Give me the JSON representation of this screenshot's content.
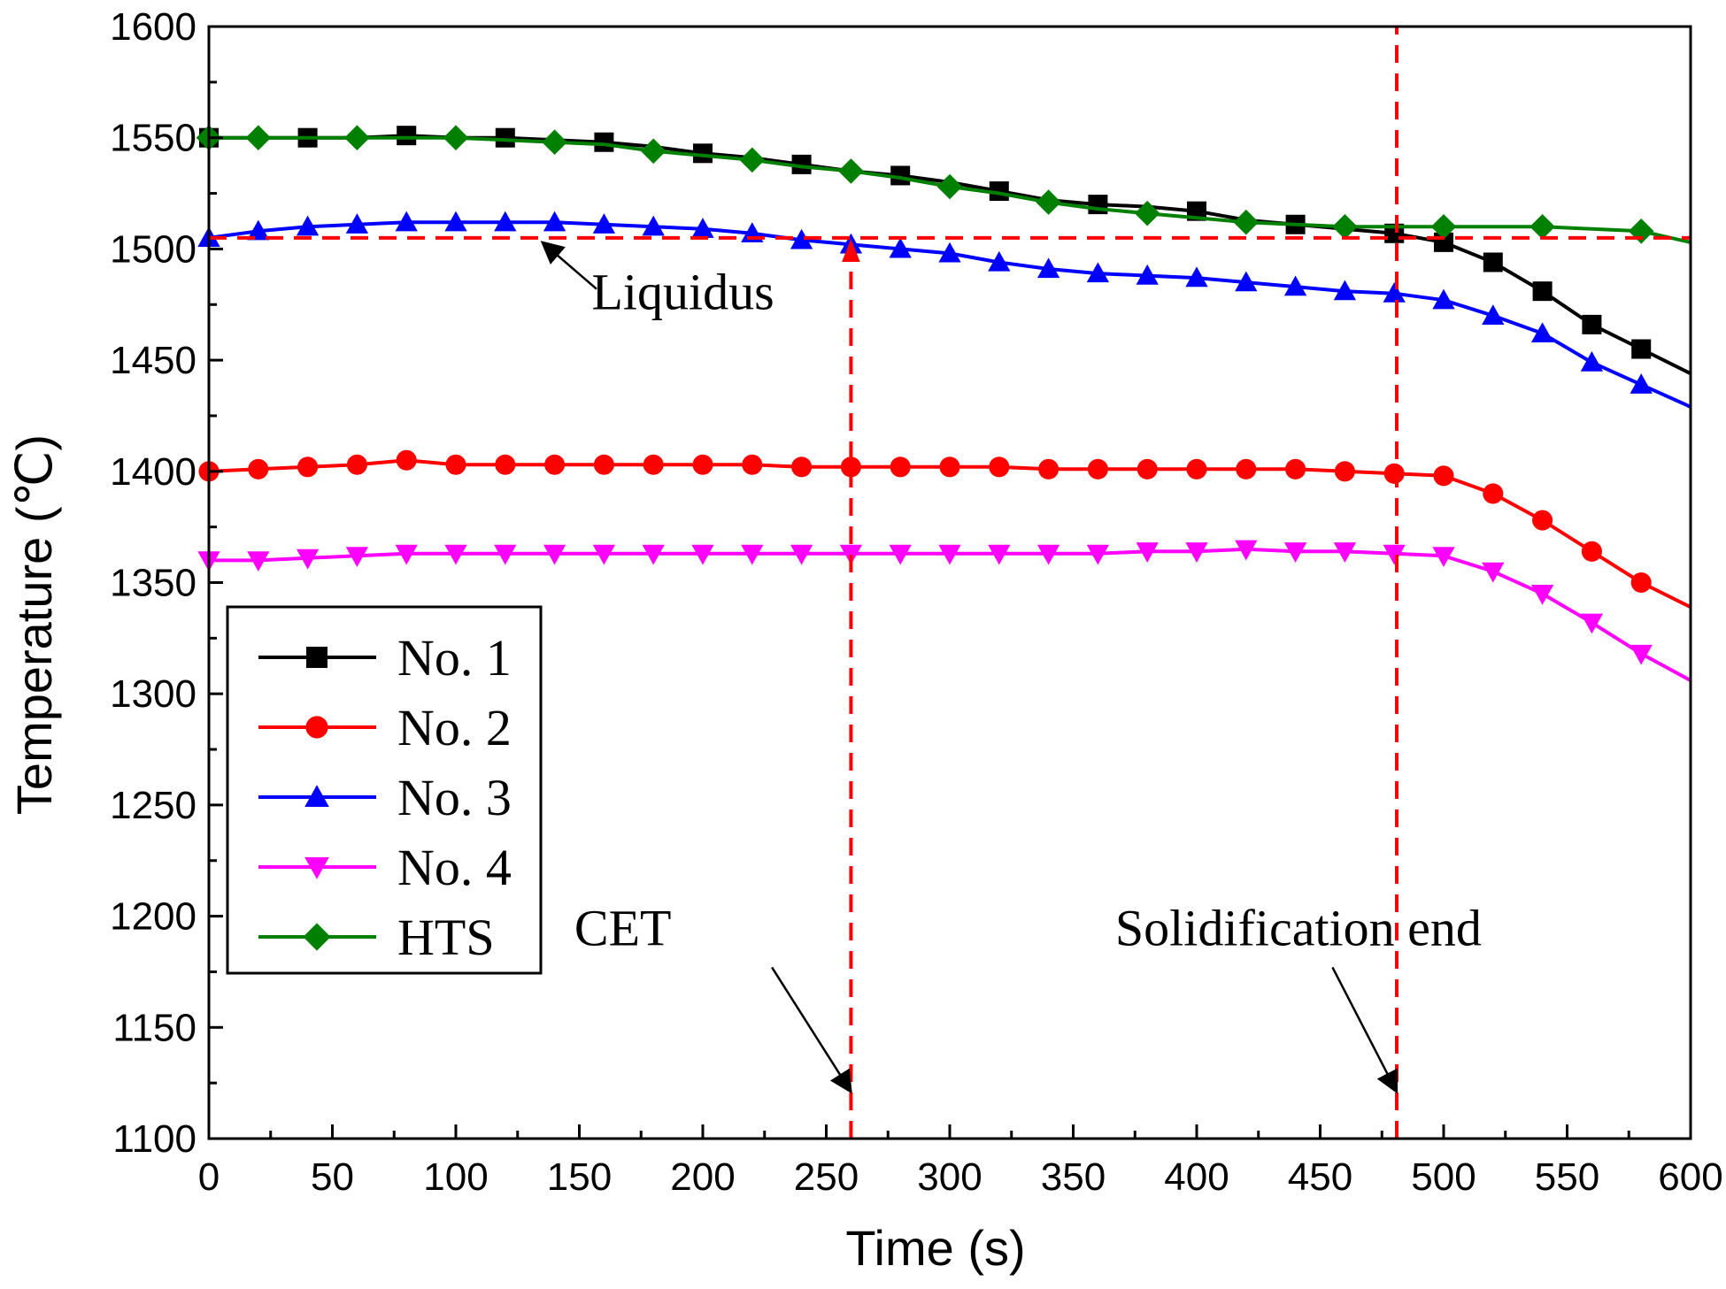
{
  "chart_data": {
    "type": "line",
    "xlabel": "Time (s)",
    "ylabel": "Temperature (℃)",
    "xlim": [
      0,
      600
    ],
    "ylim": [
      1100,
      1600
    ],
    "xticks": [
      0,
      50,
      100,
      150,
      200,
      250,
      300,
      350,
      400,
      450,
      500,
      550,
      600
    ],
    "yticks": [
      1100,
      1150,
      1200,
      1250,
      1300,
      1350,
      1400,
      1450,
      1500,
      1550,
      1600
    ],
    "grid": false,
    "legend_position": "bottom-left",
    "series": [
      {
        "name": "No. 1",
        "color": "#000000",
        "marker": "square",
        "points": [
          [
            0,
            1550
          ],
          [
            20,
            1550
          ],
          [
            40,
            1550
          ],
          [
            60,
            1550
          ],
          [
            80,
            1551
          ],
          [
            100,
            1550
          ],
          [
            120,
            1550
          ],
          [
            140,
            1549
          ],
          [
            160,
            1548
          ],
          [
            180,
            1546
          ],
          [
            200,
            1543
          ],
          [
            220,
            1541
          ],
          [
            240,
            1538
          ],
          [
            260,
            1535
          ],
          [
            280,
            1533
          ],
          [
            300,
            1530
          ],
          [
            320,
            1526
          ],
          [
            340,
            1522
          ],
          [
            360,
            1520
          ],
          [
            380,
            1519
          ],
          [
            400,
            1517
          ],
          [
            420,
            1513
          ],
          [
            440,
            1511
          ],
          [
            460,
            1509
          ],
          [
            480,
            1507
          ],
          [
            500,
            1503
          ],
          [
            520,
            1494
          ],
          [
            540,
            1481
          ],
          [
            560,
            1466
          ],
          [
            580,
            1455
          ],
          [
            600,
            1444
          ]
        ],
        "marker_x": [
          0,
          40,
          80,
          120,
          160,
          200,
          240,
          280,
          320,
          360,
          400,
          440,
          480,
          500,
          520,
          540,
          560,
          580
        ]
      },
      {
        "name": "No. 2",
        "color": "#ff0000",
        "marker": "circle",
        "points": [
          [
            0,
            1400
          ],
          [
            20,
            1401
          ],
          [
            40,
            1402
          ],
          [
            60,
            1403
          ],
          [
            80,
            1405
          ],
          [
            100,
            1403
          ],
          [
            120,
            1403
          ],
          [
            140,
            1403
          ],
          [
            160,
            1403
          ],
          [
            180,
            1403
          ],
          [
            200,
            1403
          ],
          [
            220,
            1403
          ],
          [
            240,
            1402
          ],
          [
            260,
            1402
          ],
          [
            280,
            1402
          ],
          [
            300,
            1402
          ],
          [
            320,
            1402
          ],
          [
            340,
            1401
          ],
          [
            360,
            1401
          ],
          [
            380,
            1401
          ],
          [
            400,
            1401
          ],
          [
            420,
            1401
          ],
          [
            440,
            1401
          ],
          [
            460,
            1400
          ],
          [
            480,
            1399
          ],
          [
            500,
            1398
          ],
          [
            520,
            1390
          ],
          [
            540,
            1378
          ],
          [
            560,
            1364
          ],
          [
            580,
            1350
          ],
          [
            600,
            1339
          ]
        ],
        "marker_x": [
          0,
          20,
          40,
          60,
          80,
          100,
          120,
          140,
          160,
          180,
          200,
          220,
          240,
          260,
          280,
          300,
          320,
          340,
          360,
          380,
          400,
          420,
          440,
          460,
          480,
          500,
          520,
          540,
          560,
          580
        ]
      },
      {
        "name": "No. 3",
        "color": "#0000ff",
        "marker": "triangle-up",
        "points": [
          [
            0,
            1505
          ],
          [
            20,
            1508
          ],
          [
            40,
            1510
          ],
          [
            60,
            1511
          ],
          [
            80,
            1512
          ],
          [
            100,
            1512
          ],
          [
            120,
            1512
          ],
          [
            140,
            1512
          ],
          [
            160,
            1511
          ],
          [
            180,
            1510
          ],
          [
            200,
            1509
          ],
          [
            220,
            1507
          ],
          [
            240,
            1504
          ],
          [
            260,
            1502
          ],
          [
            280,
            1500
          ],
          [
            300,
            1498
          ],
          [
            320,
            1494
          ],
          [
            340,
            1491
          ],
          [
            360,
            1489
          ],
          [
            380,
            1488
          ],
          [
            400,
            1487
          ],
          [
            420,
            1485
          ],
          [
            440,
            1483
          ],
          [
            460,
            1481
          ],
          [
            480,
            1480
          ],
          [
            500,
            1477
          ],
          [
            520,
            1470
          ],
          [
            540,
            1462
          ],
          [
            560,
            1449
          ],
          [
            580,
            1439
          ],
          [
            600,
            1429
          ]
        ],
        "marker_x": [
          0,
          20,
          40,
          60,
          80,
          100,
          120,
          140,
          160,
          180,
          200,
          220,
          240,
          260,
          280,
          300,
          320,
          340,
          360,
          380,
          400,
          420,
          440,
          460,
          480,
          500,
          520,
          540,
          560,
          580
        ]
      },
      {
        "name": "No. 4",
        "color": "#ff00ff",
        "marker": "triangle-down",
        "points": [
          [
            0,
            1360
          ],
          [
            20,
            1360
          ],
          [
            40,
            1361
          ],
          [
            60,
            1362
          ],
          [
            80,
            1363
          ],
          [
            100,
            1363
          ],
          [
            120,
            1363
          ],
          [
            140,
            1363
          ],
          [
            160,
            1363
          ],
          [
            180,
            1363
          ],
          [
            200,
            1363
          ],
          [
            220,
            1363
          ],
          [
            240,
            1363
          ],
          [
            260,
            1363
          ],
          [
            280,
            1363
          ],
          [
            300,
            1363
          ],
          [
            320,
            1363
          ],
          [
            340,
            1363
          ],
          [
            360,
            1363
          ],
          [
            380,
            1364
          ],
          [
            400,
            1364
          ],
          [
            420,
            1365
          ],
          [
            440,
            1364
          ],
          [
            460,
            1364
          ],
          [
            480,
            1363
          ],
          [
            500,
            1362
          ],
          [
            520,
            1355
          ],
          [
            540,
            1345
          ],
          [
            560,
            1332
          ],
          [
            580,
            1318
          ],
          [
            600,
            1306
          ]
        ],
        "marker_x": [
          0,
          20,
          40,
          60,
          80,
          100,
          120,
          140,
          160,
          180,
          200,
          220,
          240,
          260,
          280,
          300,
          320,
          340,
          360,
          380,
          400,
          420,
          440,
          460,
          480,
          500,
          520,
          540,
          560,
          580
        ]
      },
      {
        "name": "HTS",
        "color": "#008000",
        "marker": "diamond",
        "points": [
          [
            0,
            1550
          ],
          [
            20,
            1550
          ],
          [
            40,
            1550
          ],
          [
            60,
            1550
          ],
          [
            80,
            1550
          ],
          [
            100,
            1550
          ],
          [
            120,
            1549
          ],
          [
            140,
            1548
          ],
          [
            160,
            1547
          ],
          [
            180,
            1544
          ],
          [
            200,
            1542
          ],
          [
            220,
            1540
          ],
          [
            240,
            1537
          ],
          [
            260,
            1535
          ],
          [
            280,
            1532
          ],
          [
            300,
            1528
          ],
          [
            320,
            1525
          ],
          [
            340,
            1521
          ],
          [
            360,
            1518
          ],
          [
            380,
            1516
          ],
          [
            400,
            1514
          ],
          [
            420,
            1512
          ],
          [
            440,
            1511
          ],
          [
            460,
            1510
          ],
          [
            480,
            1510
          ],
          [
            500,
            1510
          ],
          [
            520,
            1510
          ],
          [
            540,
            1510
          ],
          [
            560,
            1509
          ],
          [
            580,
            1508
          ],
          [
            600,
            1503
          ]
        ],
        "marker_x": [
          0,
          20,
          60,
          100,
          140,
          180,
          220,
          260,
          300,
          340,
          380,
          420,
          460,
          500,
          540,
          580
        ]
      }
    ],
    "reference_lines": {
      "liquidus_temperature": 1505,
      "cet_time": 260,
      "solidification_end_time": 481
    },
    "annotations": {
      "liquidus": {
        "text": "Liquidus",
        "x": 155,
        "y": 1473,
        "arrow_from": [
          157,
          1482
        ],
        "arrow_to": [
          135,
          1503
        ]
      },
      "cet": {
        "text": "CET",
        "x": 148,
        "y": 1187,
        "arrow_from": [
          228,
          1177
        ],
        "arrow_to": [
          260,
          1121
        ]
      },
      "solidification_end": {
        "text": "Solidification end",
        "x": 367,
        "y": 1187,
        "arrow_from": [
          455,
          1177
        ],
        "arrow_to": [
          481,
          1121
        ]
      }
    }
  }
}
